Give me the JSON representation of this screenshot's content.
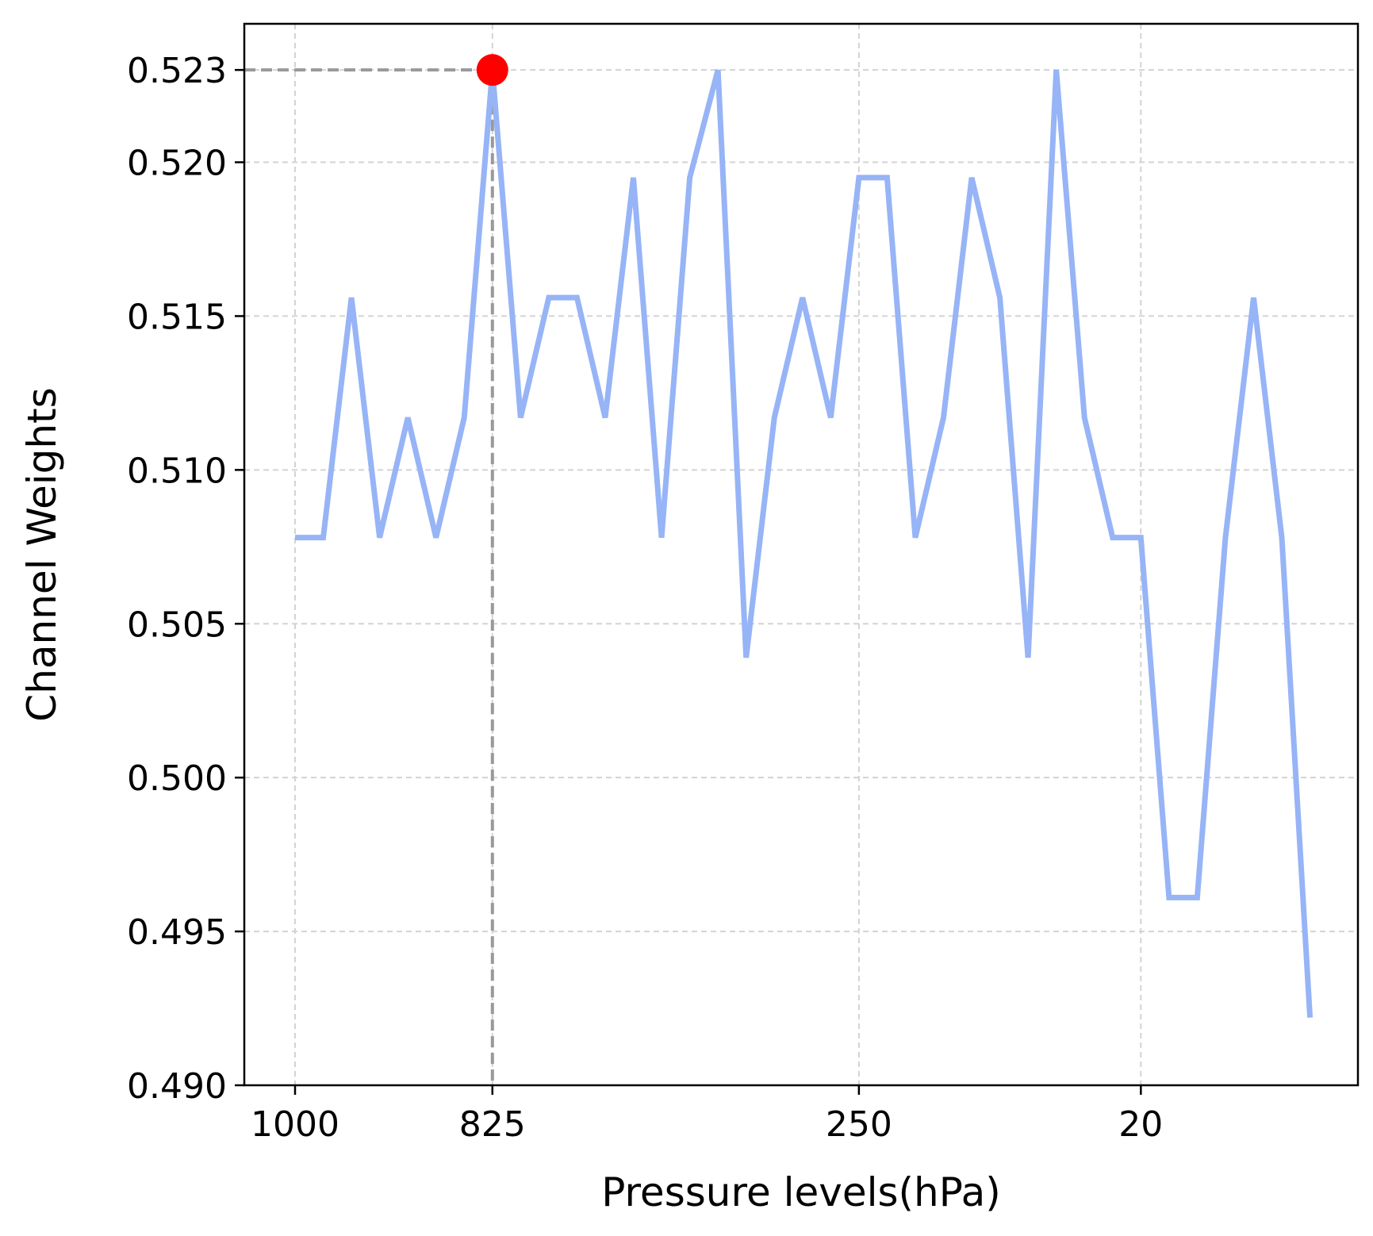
{
  "chart_data": {
    "type": "line",
    "title": "",
    "xlabel": "Pressure levels(hPa)",
    "ylabel": "Channel Weights",
    "x_index": [
      0,
      1,
      2,
      3,
      4,
      5,
      6,
      7,
      8,
      9,
      10,
      11,
      12,
      13,
      14,
      15,
      16,
      17,
      18,
      19,
      20,
      21,
      22,
      23,
      24,
      25,
      26,
      27,
      28,
      29,
      30,
      31,
      32,
      33,
      34,
      35,
      36
    ],
    "values": [
      0.5078,
      0.5078,
      0.5156,
      0.5078,
      0.5117,
      0.5078,
      0.5117,
      0.523,
      0.5117,
      0.5156,
      0.5156,
      0.5117,
      0.5195,
      0.5078,
      0.5195,
      0.523,
      0.5039,
      0.5117,
      0.5156,
      0.5117,
      0.5195,
      0.5195,
      0.5078,
      0.5117,
      0.5195,
      0.5156,
      0.5039,
      0.523,
      0.5117,
      0.5078,
      0.5078,
      0.4961,
      0.4961,
      0.5078,
      0.5156,
      0.5078,
      0.4922
    ],
    "xlim": [
      -1.8,
      37.7
    ],
    "ylim": [
      0.49,
      0.5245
    ],
    "x_ticks": [
      {
        "index": 0,
        "label": "1000"
      },
      {
        "index": 7,
        "label": "825"
      },
      {
        "index": 20,
        "label": "250"
      },
      {
        "index": 30,
        "label": "20"
      }
    ],
    "y_ticks": [
      {
        "value": 0.49,
        "label": "0.490"
      },
      {
        "value": 0.495,
        "label": "0.495"
      },
      {
        "value": 0.5,
        "label": "0.500"
      },
      {
        "value": 0.505,
        "label": "0.505"
      },
      {
        "value": 0.51,
        "label": "0.510"
      },
      {
        "value": 0.515,
        "label": "0.515"
      },
      {
        "value": 0.52,
        "label": "0.520"
      },
      {
        "value": 0.523,
        "label": "0.523"
      }
    ],
    "highlight": {
      "index": 7,
      "value": 0.523
    },
    "grid": true,
    "line_color": "#96b4f6",
    "highlight_color": "#ff0000",
    "guide_color": "#999999",
    "grid_color": "#d3d3d3"
  }
}
